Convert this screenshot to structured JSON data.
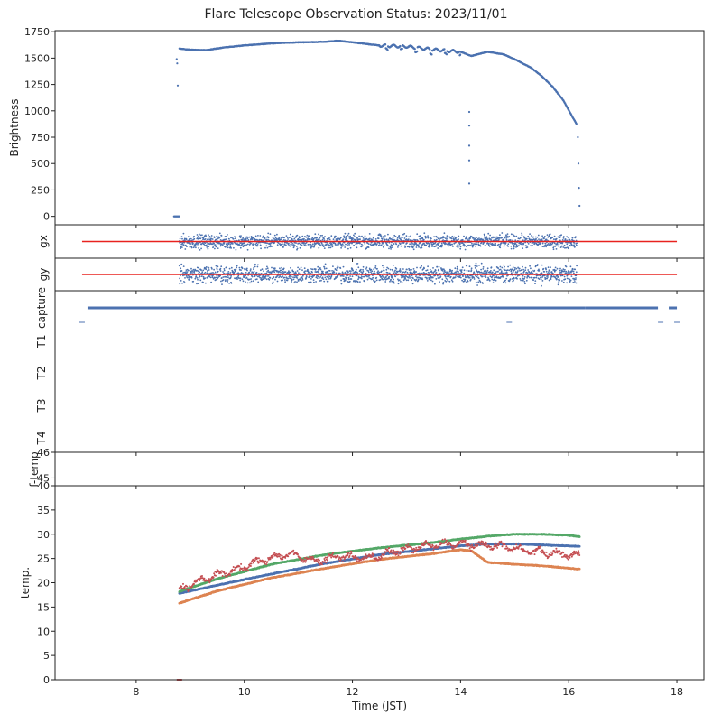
{
  "chart_data": {
    "title": "Flare Telescope Observation Status: 2023/11/01",
    "xlabel": "Time (JST)",
    "xlim": [
      6.5,
      18.5
    ],
    "xticks": [
      "8",
      "10",
      "12",
      "14",
      "16",
      "18"
    ],
    "colors": {
      "blue": "#4c72b0",
      "orange": "#dd8452",
      "green": "#55a868",
      "red": "#c44e52",
      "ref_red": "#e8221f"
    },
    "panels": [
      {
        "type": "scatter",
        "ylabel": "Brightness",
        "ylim": [
          -80,
          1760
        ],
        "yticks": [
          "0",
          "250",
          "500",
          "750",
          "1000",
          "1250",
          "1500",
          "1750"
        ],
        "observation_window": [
          8.75,
          16.2
        ],
        "brightness_profile": {
          "x": [
            8.8,
            9.0,
            9.3,
            9.6,
            10.0,
            10.5,
            11.0,
            11.5,
            11.75,
            12.0,
            12.5,
            13.0,
            13.5,
            14.0,
            14.2,
            14.5,
            14.8,
            15.0,
            15.3,
            15.5,
            15.7,
            15.9,
            16.05,
            16.15
          ],
          "y": [
            1590,
            1580,
            1575,
            1600,
            1620,
            1640,
            1650,
            1655,
            1665,
            1650,
            1620,
            1610,
            1580,
            1560,
            1520,
            1560,
            1535,
            1490,
            1410,
            1330,
            1230,
            1100,
            960,
            870
          ]
        },
        "outliers": {
          "x": [
            8.75,
            8.76,
            8.77,
            14.16,
            14.16,
            14.16,
            14.16,
            14.16,
            16.17,
            16.18,
            16.19,
            16.2
          ],
          "y": [
            1490,
            1450,
            1240,
            990,
            860,
            670,
            530,
            310,
            750,
            500,
            270,
            100
          ]
        },
        "pre_observation_zero": [
          8.7,
          8.8
        ]
      },
      {
        "type": "scatter",
        "ylabel": "gx",
        "ylim": [
          -1,
          1
        ],
        "reference_line": {
          "value": 0,
          "xrange": [
            7.0,
            18.0
          ]
        },
        "scatter_spread": 0.35
      },
      {
        "type": "scatter",
        "ylabel": "gy",
        "ylim": [
          -1,
          1
        ],
        "reference_line": {
          "value": 0,
          "xrange": [
            7.0,
            18.0
          ]
        },
        "scatter_spread": 0.45
      },
      {
        "type": "status",
        "ylabels": [
          "capture",
          "T1",
          "T2",
          "T3",
          "T4"
        ],
        "capture_on": [
          [
            7.1,
            16.3
          ]
        ],
        "capture_on_late": [
          [
            16.3,
            17.65
          ],
          [
            17.85,
            18.0
          ]
        ],
        "capture_off_marks": [
          7.0,
          14.9,
          17.7,
          18.0
        ]
      },
      {
        "type": "line",
        "ylabel": "f-temp",
        "ylim": [
          44.7,
          46
        ],
        "yticks": [
          "45",
          "46"
        ]
      },
      {
        "type": "line",
        "ylabel": "temp.",
        "ylim": [
          0,
          40
        ],
        "yticks": [
          "0",
          "5",
          "10",
          "15",
          "20",
          "25",
          "30",
          "35",
          "40"
        ],
        "series": [
          {
            "name": "blue",
            "x": [
              8.8,
              9.5,
              10.5,
              11.5,
              12.5,
              13.5,
              14.0,
              14.5,
              15.0,
              15.5,
              16.2
            ],
            "y": [
              17.8,
              19.5,
              21.8,
              24.0,
              25.8,
              27.0,
              27.6,
              28.0,
              28.0,
              27.8,
              27.5
            ]
          },
          {
            "name": "orange",
            "x": [
              8.8,
              9.5,
              10.5,
              11.5,
              12.5,
              13.5,
              14.0,
              14.2,
              14.5,
              15.0,
              15.5,
              16.2
            ],
            "y": [
              15.8,
              18.3,
              21.0,
              23.0,
              24.8,
              26.0,
              26.8,
              26.6,
              24.2,
              23.8,
              23.5,
              22.8
            ]
          },
          {
            "name": "green",
            "x": [
              8.8,
              9.5,
              10.5,
              11.5,
              12.5,
              13.5,
              14.0,
              14.5,
              15.0,
              15.5,
              16.0,
              16.2
            ],
            "y": [
              18.2,
              20.8,
              23.8,
              25.8,
              27.2,
              28.3,
              29.0,
              29.6,
              30.0,
              30.0,
              29.8,
              29.5
            ]
          },
          {
            "name": "red",
            "x": [
              8.8,
              9.3,
              9.8,
              10.3,
              10.8,
              11.3,
              11.8,
              12.3,
              12.8,
              13.3,
              13.8,
              14.3,
              14.8,
              15.3,
              15.8,
              16.2
            ],
            "y": [
              18.5,
              21.0,
              22.5,
              24.5,
              26.0,
              24.5,
              25.5,
              25.0,
              26.5,
              27.5,
              28.0,
              27.8,
              27.5,
              26.5,
              26.0,
              25.5
            ]
          }
        ],
        "noise_series": "red"
      }
    ]
  }
}
